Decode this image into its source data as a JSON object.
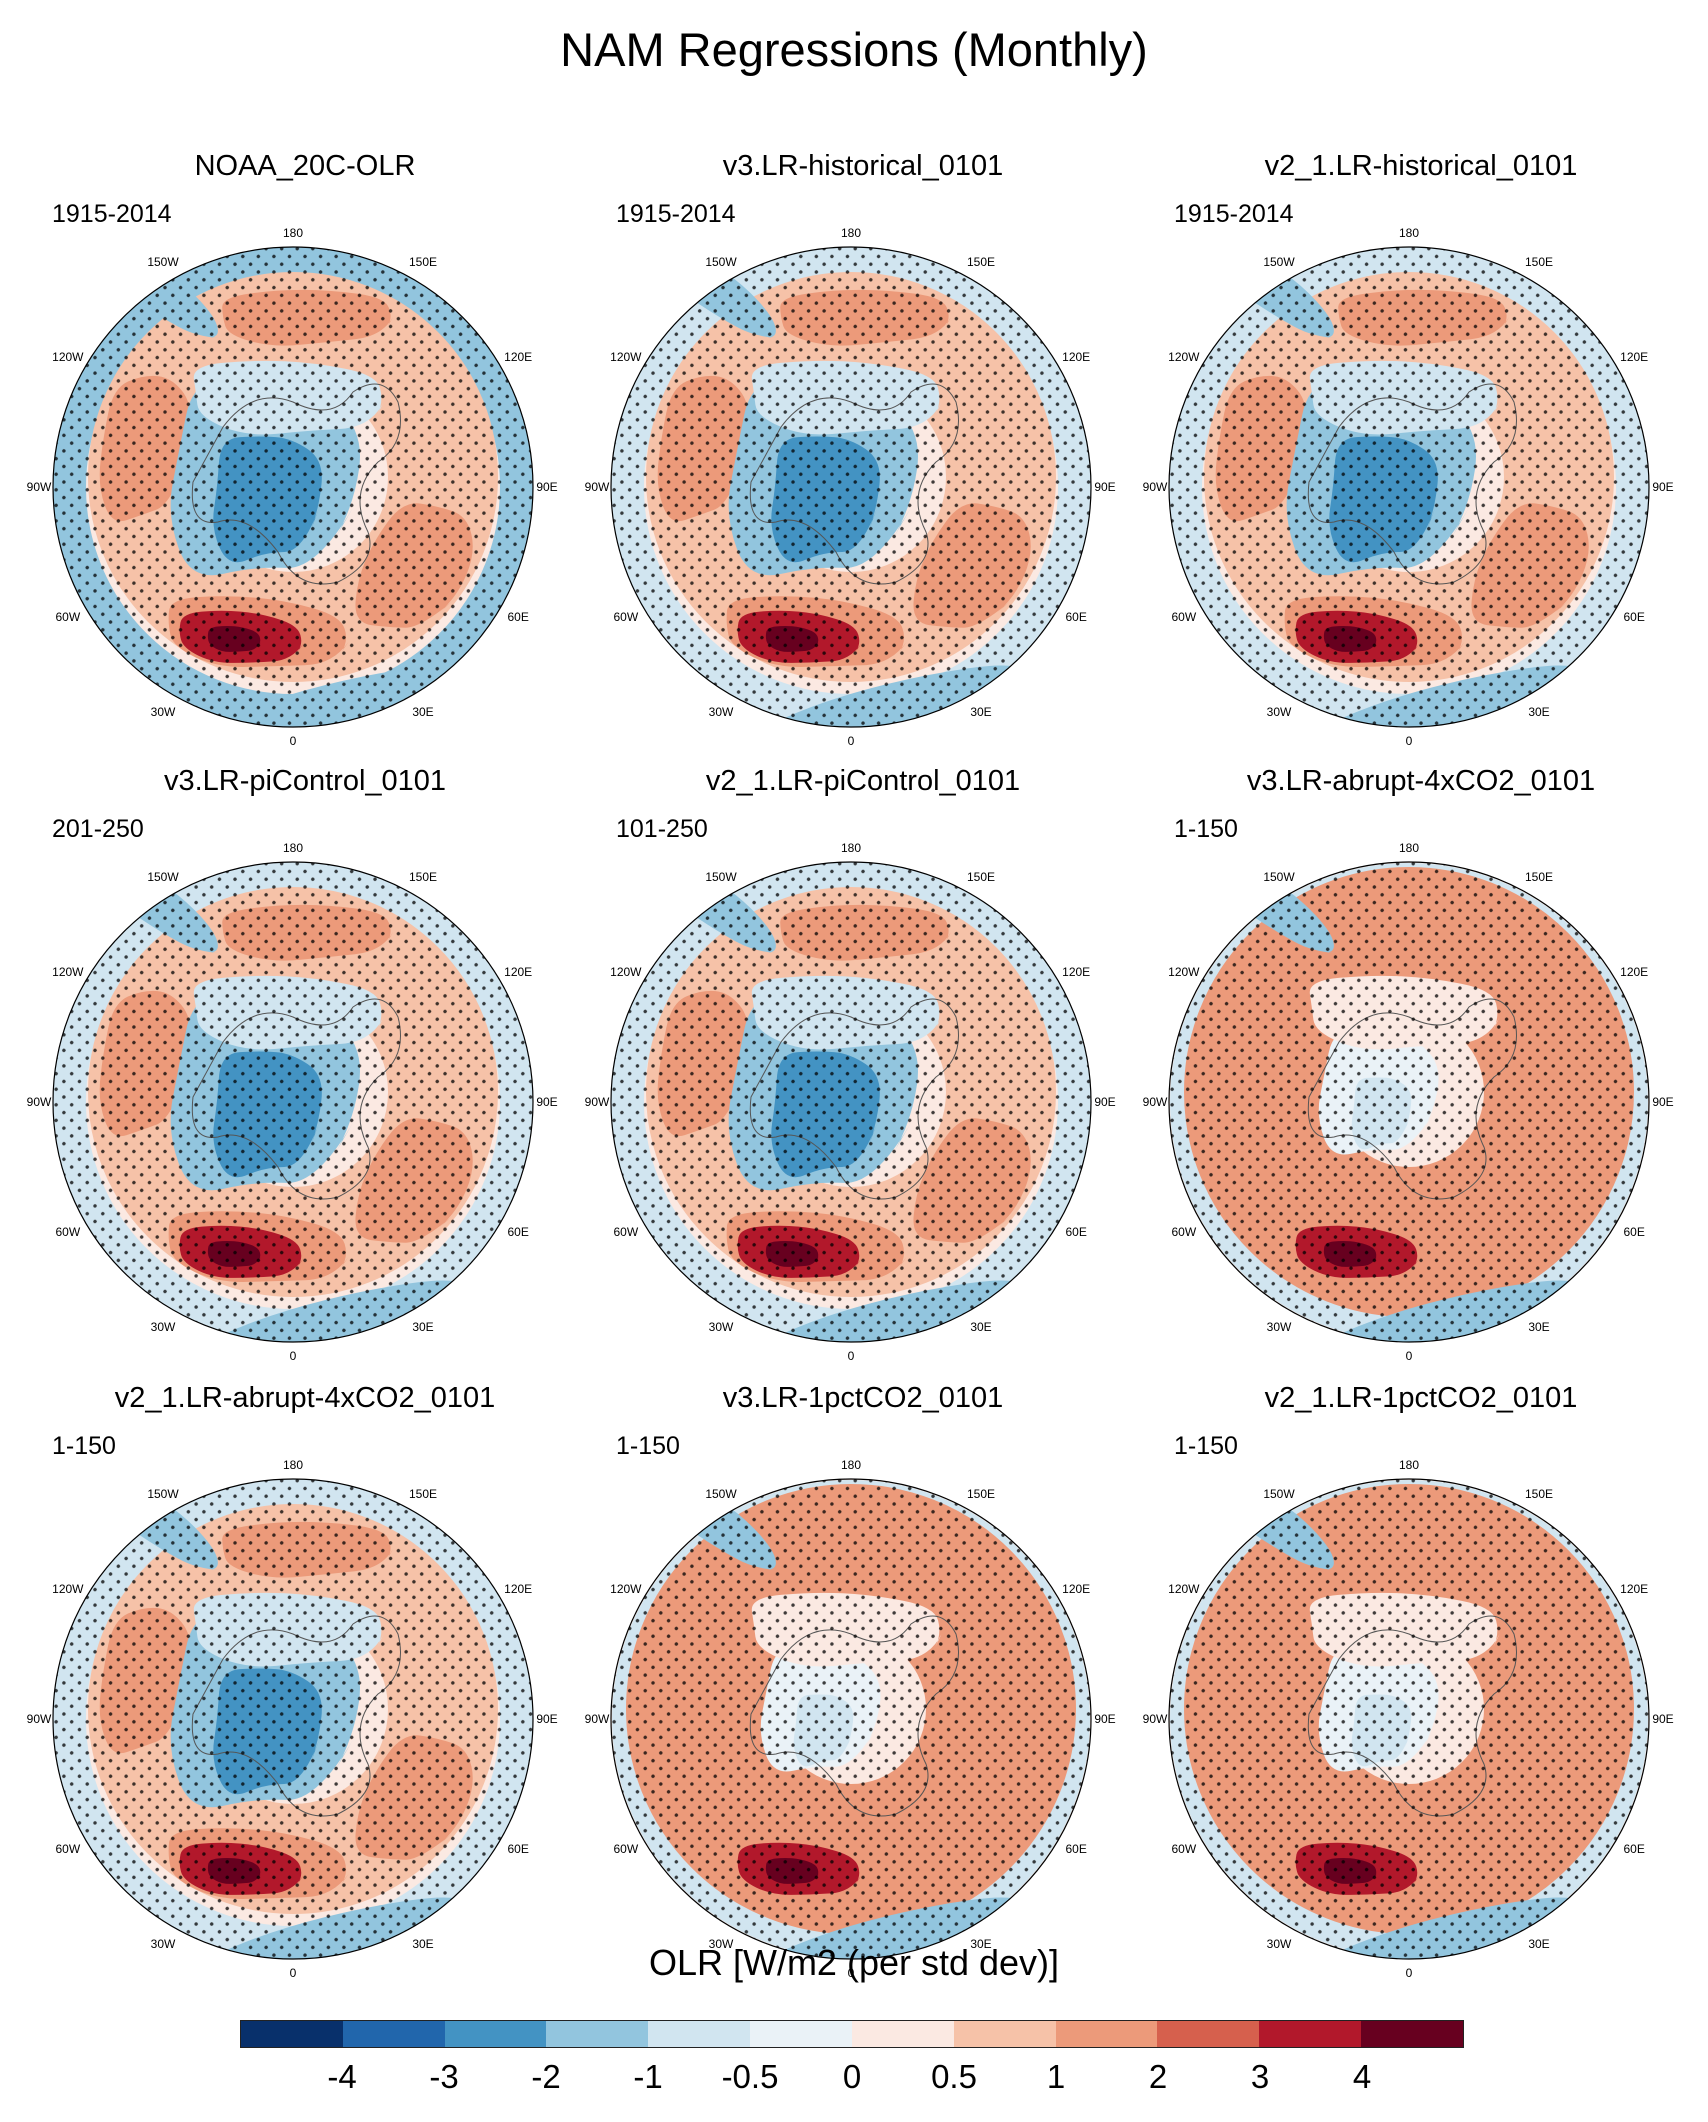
{
  "title": "NAM Regressions (Monthly)",
  "longitude_labels": [
    "180",
    "150E",
    "120E",
    "90E",
    "60E",
    "30E",
    "0",
    "30W",
    "60W",
    "90W",
    "120W",
    "150W"
  ],
  "panels": [
    {
      "title": "NOAA_20C-OLR",
      "period": "1915-2014",
      "pattern": "observed"
    },
    {
      "title": "v3.LR-historical_0101",
      "period": "1915-2014",
      "pattern": "model"
    },
    {
      "title": "v2_1.LR-historical_0101",
      "period": "1915-2014",
      "pattern": "model"
    },
    {
      "title": "v3.LR-piControl_0101",
      "period": "201-250",
      "pattern": "model"
    },
    {
      "title": "v2_1.LR-piControl_0101",
      "period": "101-250",
      "pattern": "model"
    },
    {
      "title": "v3.LR-abrupt-4xCO2_0101",
      "period": "1-150",
      "pattern": "warm"
    },
    {
      "title": "v2_1.LR-abrupt-4xCO2_0101",
      "period": "1-150",
      "pattern": "model"
    },
    {
      "title": "v3.LR-1pctCO2_0101",
      "period": "1-150",
      "pattern": "warm"
    },
    {
      "title": "v2_1.LR-1pctCO2_0101",
      "period": "1-150",
      "pattern": "warm"
    }
  ],
  "colorbar": {
    "title": "OLR [W/m2 (per std dev)]",
    "tick_labels": [
      "-4",
      "-3",
      "-2",
      "-1",
      "-0.5",
      "0",
      "0.5",
      "1",
      "2",
      "3",
      "4"
    ],
    "colors": [
      "#08306b",
      "#2166ac",
      "#4393c3",
      "#92c5de",
      "#d1e5f0",
      "#eaf2f7",
      "#fbe9e2",
      "#f6c2a8",
      "#ec9a7a",
      "#d6604d",
      "#b2182b",
      "#67001f"
    ]
  }
}
